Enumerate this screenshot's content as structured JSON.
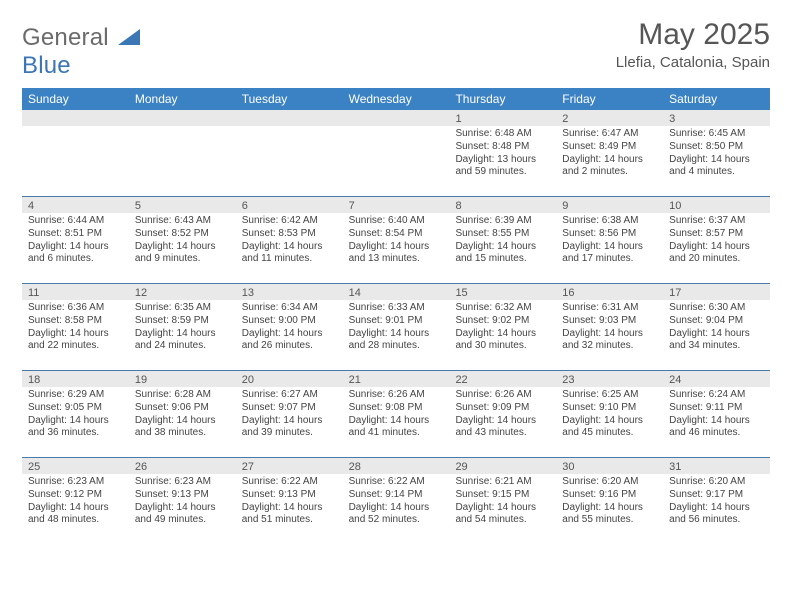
{
  "logo": {
    "text1": "General",
    "text2": "Blue"
  },
  "title": "May 2025",
  "location": "Llefia, Catalonia, Spain",
  "colors": {
    "header_bg": "#3b82c4",
    "header_text": "#ffffff",
    "daynum_bg": "#e9e9e9",
    "week_border": "#4a7aa8",
    "logo_gray": "#6b6b6b",
    "logo_blue": "#3b76b5",
    "body_text": "#444444",
    "page_bg": "#ffffff"
  },
  "typography": {
    "title_fontsize": 30,
    "location_fontsize": 15,
    "header_fontsize": 12,
    "daynum_fontsize": 11,
    "body_fontsize": 10
  },
  "columns": [
    "Sunday",
    "Monday",
    "Tuesday",
    "Wednesday",
    "Thursday",
    "Friday",
    "Saturday"
  ],
  "weeks": [
    [
      {
        "n": "",
        "sunrise": "",
        "sunset": "",
        "daylight": ""
      },
      {
        "n": "",
        "sunrise": "",
        "sunset": "",
        "daylight": ""
      },
      {
        "n": "",
        "sunrise": "",
        "sunset": "",
        "daylight": ""
      },
      {
        "n": "",
        "sunrise": "",
        "sunset": "",
        "daylight": ""
      },
      {
        "n": "1",
        "sunrise": "Sunrise: 6:48 AM",
        "sunset": "Sunset: 8:48 PM",
        "daylight": "Daylight: 13 hours and 59 minutes."
      },
      {
        "n": "2",
        "sunrise": "Sunrise: 6:47 AM",
        "sunset": "Sunset: 8:49 PM",
        "daylight": "Daylight: 14 hours and 2 minutes."
      },
      {
        "n": "3",
        "sunrise": "Sunrise: 6:45 AM",
        "sunset": "Sunset: 8:50 PM",
        "daylight": "Daylight: 14 hours and 4 minutes."
      }
    ],
    [
      {
        "n": "4",
        "sunrise": "Sunrise: 6:44 AM",
        "sunset": "Sunset: 8:51 PM",
        "daylight": "Daylight: 14 hours and 6 minutes."
      },
      {
        "n": "5",
        "sunrise": "Sunrise: 6:43 AM",
        "sunset": "Sunset: 8:52 PM",
        "daylight": "Daylight: 14 hours and 9 minutes."
      },
      {
        "n": "6",
        "sunrise": "Sunrise: 6:42 AM",
        "sunset": "Sunset: 8:53 PM",
        "daylight": "Daylight: 14 hours and 11 minutes."
      },
      {
        "n": "7",
        "sunrise": "Sunrise: 6:40 AM",
        "sunset": "Sunset: 8:54 PM",
        "daylight": "Daylight: 14 hours and 13 minutes."
      },
      {
        "n": "8",
        "sunrise": "Sunrise: 6:39 AM",
        "sunset": "Sunset: 8:55 PM",
        "daylight": "Daylight: 14 hours and 15 minutes."
      },
      {
        "n": "9",
        "sunrise": "Sunrise: 6:38 AM",
        "sunset": "Sunset: 8:56 PM",
        "daylight": "Daylight: 14 hours and 17 minutes."
      },
      {
        "n": "10",
        "sunrise": "Sunrise: 6:37 AM",
        "sunset": "Sunset: 8:57 PM",
        "daylight": "Daylight: 14 hours and 20 minutes."
      }
    ],
    [
      {
        "n": "11",
        "sunrise": "Sunrise: 6:36 AM",
        "sunset": "Sunset: 8:58 PM",
        "daylight": "Daylight: 14 hours and 22 minutes."
      },
      {
        "n": "12",
        "sunrise": "Sunrise: 6:35 AM",
        "sunset": "Sunset: 8:59 PM",
        "daylight": "Daylight: 14 hours and 24 minutes."
      },
      {
        "n": "13",
        "sunrise": "Sunrise: 6:34 AM",
        "sunset": "Sunset: 9:00 PM",
        "daylight": "Daylight: 14 hours and 26 minutes."
      },
      {
        "n": "14",
        "sunrise": "Sunrise: 6:33 AM",
        "sunset": "Sunset: 9:01 PM",
        "daylight": "Daylight: 14 hours and 28 minutes."
      },
      {
        "n": "15",
        "sunrise": "Sunrise: 6:32 AM",
        "sunset": "Sunset: 9:02 PM",
        "daylight": "Daylight: 14 hours and 30 minutes."
      },
      {
        "n": "16",
        "sunrise": "Sunrise: 6:31 AM",
        "sunset": "Sunset: 9:03 PM",
        "daylight": "Daylight: 14 hours and 32 minutes."
      },
      {
        "n": "17",
        "sunrise": "Sunrise: 6:30 AM",
        "sunset": "Sunset: 9:04 PM",
        "daylight": "Daylight: 14 hours and 34 minutes."
      }
    ],
    [
      {
        "n": "18",
        "sunrise": "Sunrise: 6:29 AM",
        "sunset": "Sunset: 9:05 PM",
        "daylight": "Daylight: 14 hours and 36 minutes."
      },
      {
        "n": "19",
        "sunrise": "Sunrise: 6:28 AM",
        "sunset": "Sunset: 9:06 PM",
        "daylight": "Daylight: 14 hours and 38 minutes."
      },
      {
        "n": "20",
        "sunrise": "Sunrise: 6:27 AM",
        "sunset": "Sunset: 9:07 PM",
        "daylight": "Daylight: 14 hours and 39 minutes."
      },
      {
        "n": "21",
        "sunrise": "Sunrise: 6:26 AM",
        "sunset": "Sunset: 9:08 PM",
        "daylight": "Daylight: 14 hours and 41 minutes."
      },
      {
        "n": "22",
        "sunrise": "Sunrise: 6:26 AM",
        "sunset": "Sunset: 9:09 PM",
        "daylight": "Daylight: 14 hours and 43 minutes."
      },
      {
        "n": "23",
        "sunrise": "Sunrise: 6:25 AM",
        "sunset": "Sunset: 9:10 PM",
        "daylight": "Daylight: 14 hours and 45 minutes."
      },
      {
        "n": "24",
        "sunrise": "Sunrise: 6:24 AM",
        "sunset": "Sunset: 9:11 PM",
        "daylight": "Daylight: 14 hours and 46 minutes."
      }
    ],
    [
      {
        "n": "25",
        "sunrise": "Sunrise: 6:23 AM",
        "sunset": "Sunset: 9:12 PM",
        "daylight": "Daylight: 14 hours and 48 minutes."
      },
      {
        "n": "26",
        "sunrise": "Sunrise: 6:23 AM",
        "sunset": "Sunset: 9:13 PM",
        "daylight": "Daylight: 14 hours and 49 minutes."
      },
      {
        "n": "27",
        "sunrise": "Sunrise: 6:22 AM",
        "sunset": "Sunset: 9:13 PM",
        "daylight": "Daylight: 14 hours and 51 minutes."
      },
      {
        "n": "28",
        "sunrise": "Sunrise: 6:22 AM",
        "sunset": "Sunset: 9:14 PM",
        "daylight": "Daylight: 14 hours and 52 minutes."
      },
      {
        "n": "29",
        "sunrise": "Sunrise: 6:21 AM",
        "sunset": "Sunset: 9:15 PM",
        "daylight": "Daylight: 14 hours and 54 minutes."
      },
      {
        "n": "30",
        "sunrise": "Sunrise: 6:20 AM",
        "sunset": "Sunset: 9:16 PM",
        "daylight": "Daylight: 14 hours and 55 minutes."
      },
      {
        "n": "31",
        "sunrise": "Sunrise: 6:20 AM",
        "sunset": "Sunset: 9:17 PM",
        "daylight": "Daylight: 14 hours and 56 minutes."
      }
    ]
  ]
}
